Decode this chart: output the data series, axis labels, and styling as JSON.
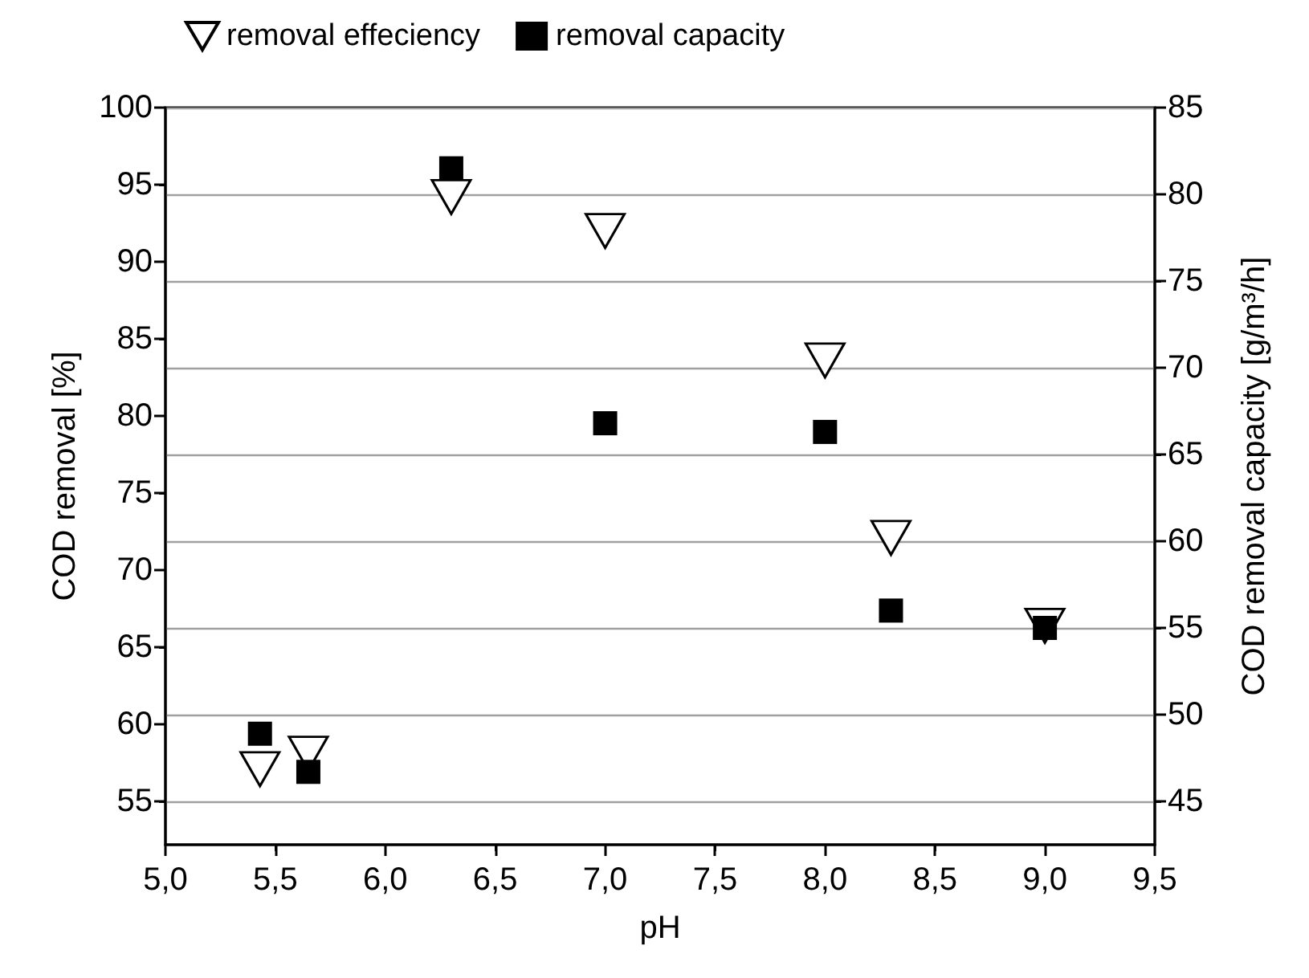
{
  "chart_data": {
    "type": "scatter",
    "xlabel": "pH",
    "ylabel": "COD removal [%]",
    "y2label": "COD removal capacity [g/m³/h]",
    "series": [
      {
        "name": "removal effeciency",
        "color": "#000000",
        "marker": "triangle",
        "x": [
          5.43,
          5.65,
          6.3,
          7.0,
          8.0,
          8.3,
          9.0
        ],
        "values": [
          57.1,
          58.1,
          94.2,
          92.0,
          83.6,
          72.1,
          66.4
        ]
      },
      {
        "name": "removal capacity",
        "color": "#000000",
        "marker": "square",
        "axis": "y2",
        "x": [
          5.43,
          5.65,
          6.3,
          7.0,
          8.0,
          8.3,
          9.0
        ],
        "values": [
          48.9,
          46.7,
          81.5,
          66.8,
          66.3,
          56.0,
          55.0
        ]
      }
    ],
    "xlim": [
      5.0,
      9.5
    ],
    "xticks": [
      {
        "value": 5.0,
        "label": "5,0"
      },
      {
        "value": 5.5,
        "label": "5,5"
      },
      {
        "value": 6.0,
        "label": "6,0"
      },
      {
        "value": 6.5,
        "label": "6,5"
      },
      {
        "value": 7.0,
        "label": "7,0"
      },
      {
        "value": 7.5,
        "label": "7,5"
      },
      {
        "value": 8.0,
        "label": "8,0"
      },
      {
        "value": 8.5,
        "label": "8,5"
      },
      {
        "value": 9.0,
        "label": "9,0"
      },
      {
        "value": 9.5,
        "label": "9,5"
      }
    ],
    "ylim": [
      52.2,
      100
    ],
    "yticks": [
      55,
      60,
      65,
      70,
      75,
      80,
      85,
      90,
      95,
      100
    ],
    "y2lim": [
      42.5,
      85
    ],
    "y2ticks": [
      45,
      50,
      55,
      60,
      65,
      70,
      75,
      80,
      85
    ],
    "grid": "y2",
    "legend": "top"
  }
}
